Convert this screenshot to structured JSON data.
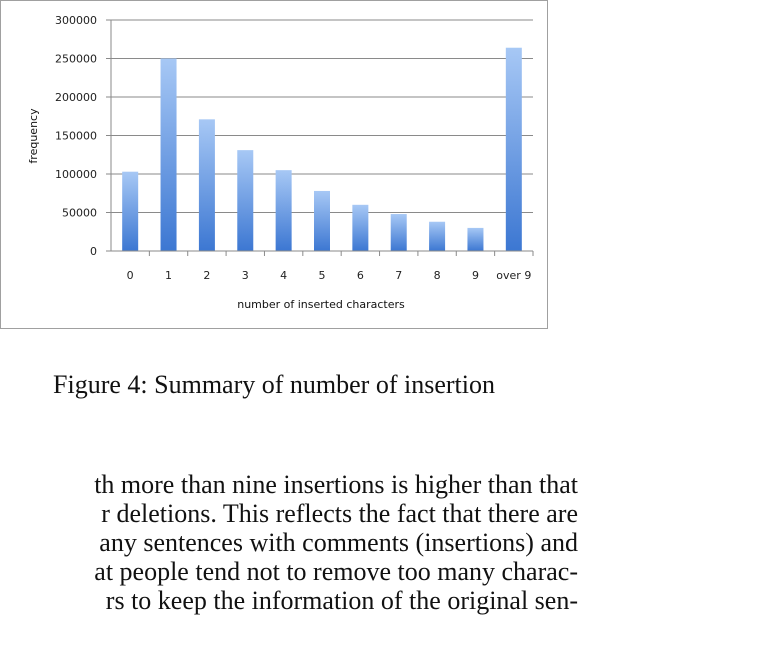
{
  "figure": {
    "caption": "Figure 4: Summary of number of insertion"
  },
  "chart_data": {
    "type": "bar",
    "categories": [
      "0",
      "1",
      "2",
      "3",
      "4",
      "5",
      "6",
      "7",
      "8",
      "9",
      "over 9"
    ],
    "values": [
      103000,
      250000,
      171000,
      131000,
      105000,
      78000,
      60000,
      48000,
      38000,
      30000,
      264000
    ],
    "title": "",
    "xlabel": "number of inserted characters",
    "ylabel": "frequency",
    "ylim": [
      0,
      300000
    ],
    "yticks": [
      "0",
      "50000",
      "100000",
      "150000",
      "200000",
      "250000",
      "300000"
    ],
    "grid": true,
    "legend": "none",
    "bar_color_top": "#a7c8f5",
    "bar_color_bottom": "#3c77d2"
  },
  "body": {
    "lines": [
      "th more than nine insertions is higher than that",
      "r deletions. This reflects the fact that there are",
      "any sentences with comments (insertions) and",
      "at people tend not to remove too many charac-",
      "rs to keep the information of the original sen-"
    ]
  }
}
